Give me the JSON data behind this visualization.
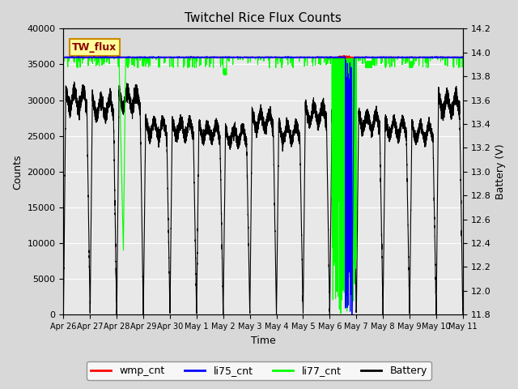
{
  "title": "Twitchel Rice Flux Counts",
  "ylabel_left": "Counts",
  "ylabel_right": "Battery (V)",
  "xlabel": "Time",
  "ylim_left": [
    0,
    40000
  ],
  "ylim_right": [
    11.8,
    14.2
  ],
  "yticks_left": [
    0,
    5000,
    10000,
    15000,
    20000,
    25000,
    30000,
    35000,
    40000
  ],
  "yticks_right": [
    11.8,
    12.0,
    12.2,
    12.4,
    12.6,
    12.8,
    13.0,
    13.2,
    13.4,
    13.6,
    13.8,
    14.0,
    14.2
  ],
  "xtick_labels": [
    "Apr 26",
    "Apr 27",
    "Apr 28",
    "Apr 29",
    "Apr 30",
    "May 1",
    "May 2",
    "May 3",
    "May 4",
    "May 5",
    "May 6",
    "May 7",
    "May 8",
    "May 9",
    "May 10",
    "May 11"
  ],
  "background_color": "#d8d8d8",
  "plot_bg_color": "#e8e8e8",
  "annotation_box": {
    "text": "TW_flux",
    "bg": "#ffff99",
    "border": "#cc8800"
  },
  "legend_entries": [
    "wmp_cnt",
    "li75_cnt",
    "li77_cnt",
    "Battery"
  ],
  "legend_colors": [
    "red",
    "blue",
    "lime",
    "black"
  ],
  "batt_v_min": 11.8,
  "batt_v_max": 14.2,
  "counts_min": 0,
  "counts_max": 40000,
  "flat_level": 36000,
  "total_days": 15
}
